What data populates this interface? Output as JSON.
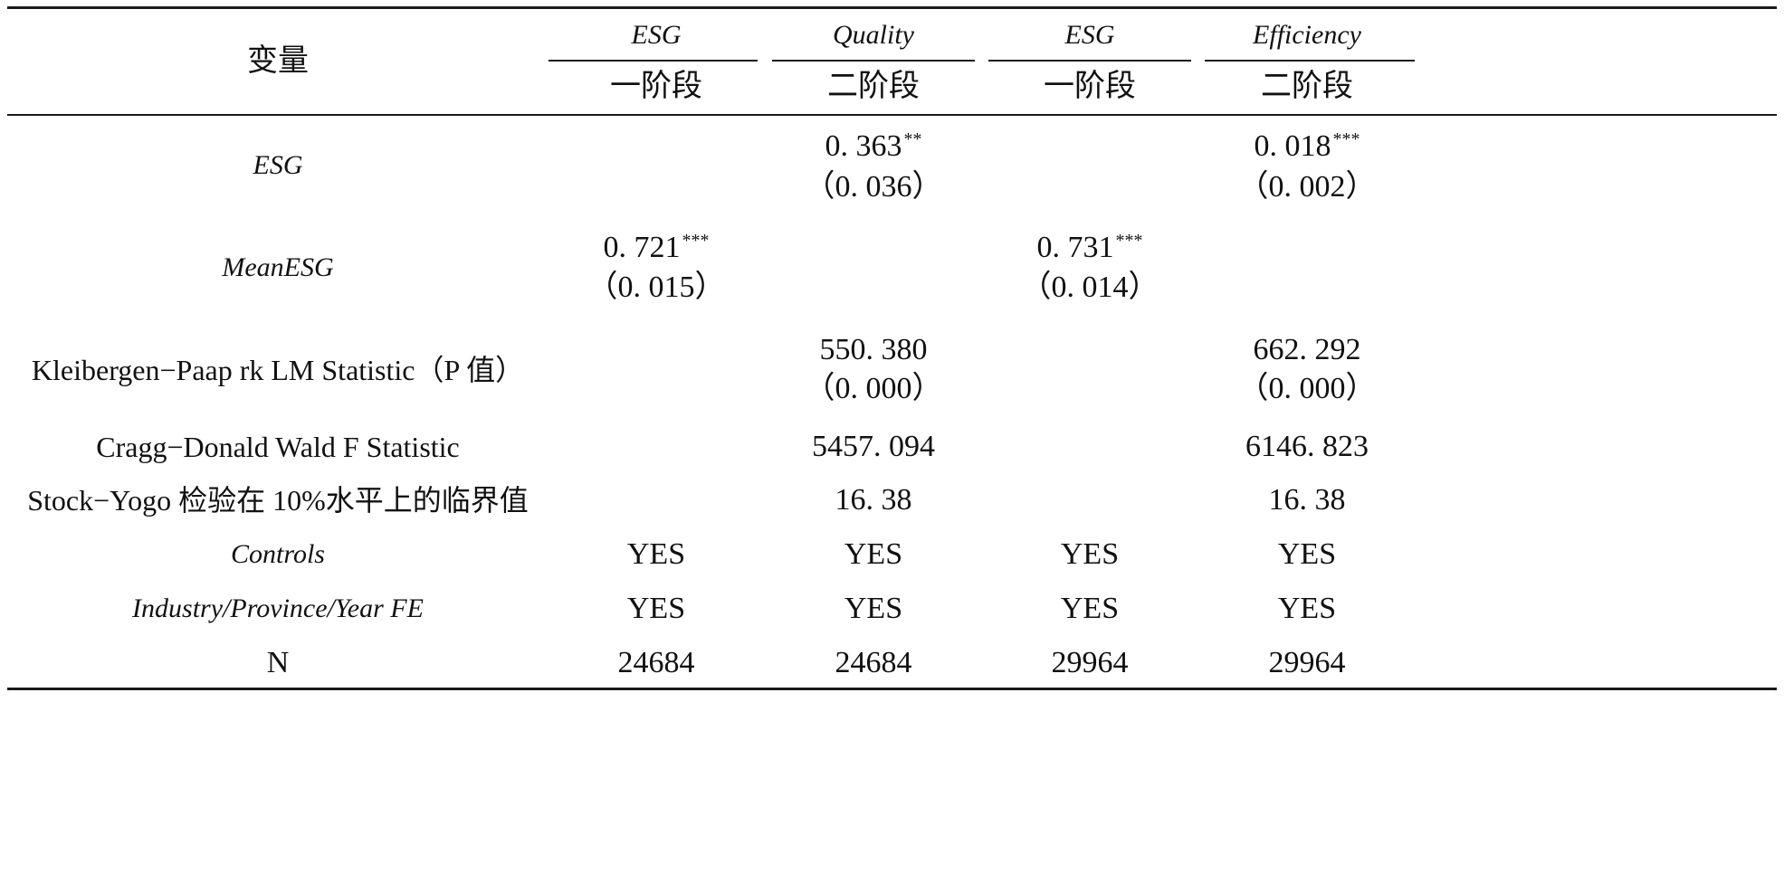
{
  "header": {
    "row_label": "变量",
    "columns": [
      {
        "dep_var": "ESG",
        "stage": "一阶段"
      },
      {
        "dep_var": "Quality",
        "stage": "二阶段"
      },
      {
        "dep_var": "ESG",
        "stage": "一阶段"
      },
      {
        "dep_var": "Efficiency",
        "stage": "二阶段"
      }
    ]
  },
  "rows": {
    "esg": {
      "label": "ESG",
      "col2": {
        "coef": "0. 363",
        "stars": "**",
        "se": "（0. 036）"
      },
      "col4": {
        "coef": "0. 018",
        "stars": "***",
        "se": "（0. 002）"
      }
    },
    "meanesg": {
      "label": "MeanESG",
      "col1": {
        "coef": "0. 721",
        "stars": "***",
        "se": "（0. 015）"
      },
      "col3": {
        "coef": "0. 731",
        "stars": "***",
        "se": "（0. 014）"
      }
    },
    "kp": {
      "label": "Kleibergen−Paap rk LM Statistic（P 值）",
      "col2": {
        "value": "550. 380",
        "p": "（0. 000）"
      },
      "col4": {
        "value": "662. 292",
        "p": "（0. 000）"
      }
    },
    "cd": {
      "label": "Cragg−Donald Wald F Statistic",
      "col2": "5457. 094",
      "col4": "6146. 823"
    },
    "sy": {
      "label": "Stock−Yogo 检验在 10%水平上的临界值",
      "col2": "16. 38",
      "col4": "16. 38"
    },
    "controls": {
      "label": "Controls",
      "values": [
        "YES",
        "YES",
        "YES",
        "YES"
      ]
    },
    "fe": {
      "label": "Industry/Province/Year FE",
      "values": [
        "YES",
        "YES",
        "YES",
        "YES"
      ]
    },
    "n": {
      "label": "N",
      "values": [
        "24684",
        "24684",
        "29964",
        "29964"
      ]
    }
  }
}
